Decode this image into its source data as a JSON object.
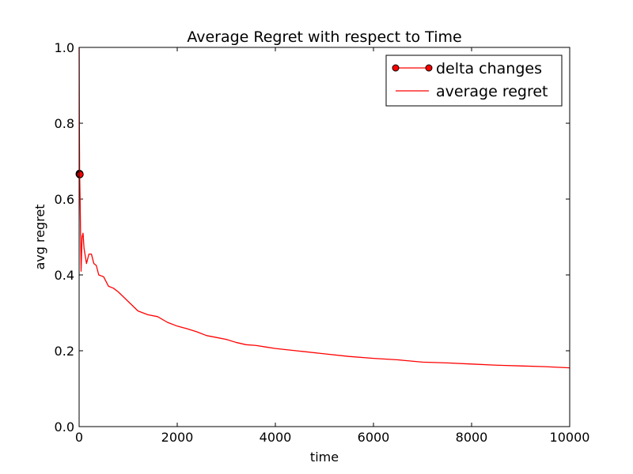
{
  "chart_data": {
    "type": "line",
    "title": "Average Regret with respect to Time",
    "xlabel": "time",
    "ylabel": "avg regret",
    "xlim": [
      0,
      10000
    ],
    "ylim": [
      0.0,
      1.0
    ],
    "xticks": [
      0,
      2000,
      4000,
      6000,
      8000,
      10000
    ],
    "xtick_labels": [
      "0",
      "2000",
      "4000",
      "6000",
      "8000",
      "10000"
    ],
    "yticks": [
      0.0,
      0.2,
      0.4,
      0.6,
      0.8,
      1.0
    ],
    "ytick_labels": [
      "0.0",
      "0.2",
      "0.4",
      "0.6",
      "0.8",
      "1.0"
    ],
    "grid": false,
    "legend_position": "top-right",
    "series": [
      {
        "name": "delta changes",
        "color": "#ff0000",
        "marker": "circle",
        "x": [
          0,
          5,
          10,
          15,
          20
        ],
        "y": [
          0.666,
          0.668,
          0.664,
          0.667,
          0.665
        ]
      },
      {
        "name": "average regret",
        "color": "#ff0000",
        "marker": "none",
        "x": [
          1,
          5,
          10,
          20,
          40,
          60,
          80,
          100,
          150,
          200,
          250,
          300,
          350,
          400,
          500,
          600,
          700,
          800,
          1000,
          1200,
          1400,
          1600,
          1800,
          2000,
          2200,
          2400,
          2600,
          2800,
          3000,
          3200,
          3400,
          3600,
          3800,
          4000,
          4500,
          5000,
          5500,
          6000,
          6500,
          7000,
          7500,
          8000,
          8500,
          9000,
          9500,
          10000
        ],
        "y": [
          1.0,
          0.8,
          0.67,
          0.6,
          0.41,
          0.5,
          0.51,
          0.47,
          0.43,
          0.455,
          0.455,
          0.43,
          0.425,
          0.4,
          0.395,
          0.37,
          0.365,
          0.355,
          0.33,
          0.305,
          0.295,
          0.29,
          0.275,
          0.265,
          0.258,
          0.25,
          0.24,
          0.235,
          0.23,
          0.222,
          0.216,
          0.214,
          0.21,
          0.206,
          0.199,
          0.192,
          0.185,
          0.18,
          0.176,
          0.17,
          0.168,
          0.165,
          0.162,
          0.16,
          0.158,
          0.155
        ]
      }
    ]
  }
}
